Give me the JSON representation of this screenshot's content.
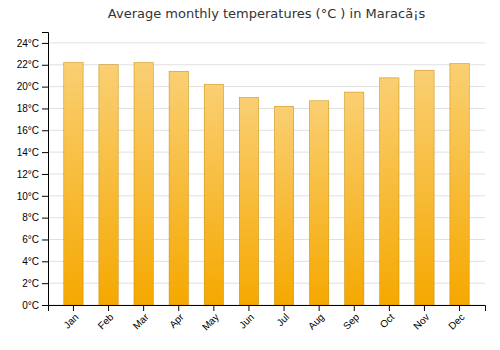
{
  "chart_data": {
    "type": "bar",
    "title": "Average monthly temperatures (°C ) in Maracã¡s",
    "categories": [
      "Jan",
      "Feb",
      "Mar",
      "Apr",
      "May",
      "Jun",
      "Jul",
      "Aug",
      "Sep",
      "Oct",
      "Nov",
      "Dec"
    ],
    "values": [
      22.2,
      22.0,
      22.2,
      21.4,
      20.2,
      19.0,
      18.2,
      18.7,
      19.5,
      20.8,
      21.5,
      22.1
    ],
    "color": "#F5A800",
    "ylim": [
      0,
      25
    ],
    "yticks": [
      {
        "value": 0,
        "label": "0°C"
      },
      {
        "value": 2,
        "label": "2°C"
      },
      {
        "value": 4,
        "label": "4°C"
      },
      {
        "value": 6,
        "label": "6°C"
      },
      {
        "value": 8,
        "label": "8°C"
      },
      {
        "value": 10,
        "label": "10°C"
      },
      {
        "value": 12,
        "label": "12°C"
      },
      {
        "value": 14,
        "label": "14°C"
      },
      {
        "value": 16,
        "label": "16°C"
      },
      {
        "value": 18,
        "label": "18°C"
      },
      {
        "value": 20,
        "label": "20°C"
      },
      {
        "value": 22,
        "label": "22°C"
      },
      {
        "value": 24,
        "label": "24°C"
      }
    ],
    "grid": true
  }
}
